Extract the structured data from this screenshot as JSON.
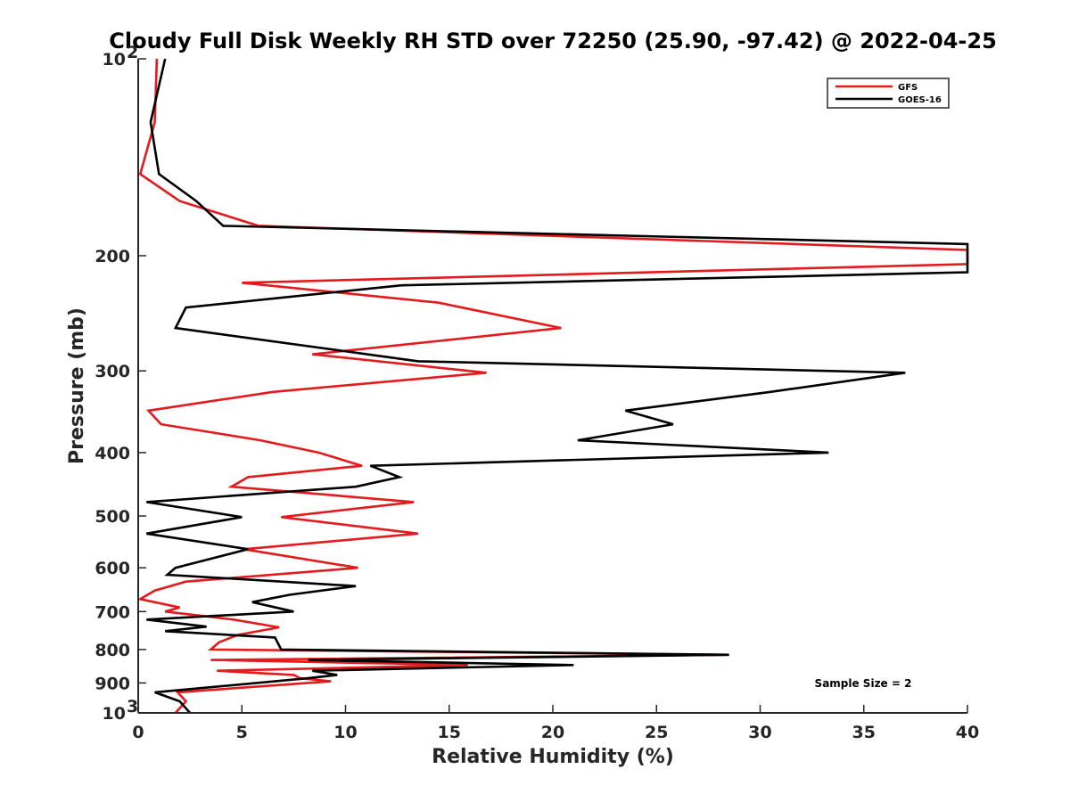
{
  "chart_data": {
    "type": "line",
    "title": "Cloudy Full Disk Weekly RH STD over 72250 (25.90, -97.42) @ 2022-04-25",
    "xlabel": "Relative Humidity (%)",
    "ylabel": "Pressure (mb)",
    "xlim": [
      0,
      40
    ],
    "ylim": [
      100,
      1000
    ],
    "y_scale": "log",
    "y_reversed": true,
    "grid": false,
    "legend_position": "top-right",
    "x_ticks": [
      "0",
      "5",
      "10",
      "15",
      "20",
      "25",
      "30",
      "35",
      "40"
    ],
    "y_ticks": [
      {
        "value": 100,
        "label": "10",
        "exp": "2"
      },
      {
        "value": 200,
        "label": "200",
        "exp": ""
      },
      {
        "value": 300,
        "label": "300",
        "exp": ""
      },
      {
        "value": 400,
        "label": "400",
        "exp": ""
      },
      {
        "value": 500,
        "label": "500",
        "exp": ""
      },
      {
        "value": 600,
        "label": "600",
        "exp": ""
      },
      {
        "value": 700,
        "label": "700",
        "exp": ""
      },
      {
        "value": 800,
        "label": "800",
        "exp": ""
      },
      {
        "value": 900,
        "label": "900",
        "exp": ""
      },
      {
        "value": 1000,
        "label": "10",
        "exp": "3"
      }
    ],
    "annotation": "Sample Size = 2",
    "series": [
      {
        "name": "GFS",
        "color": "#e41a1c",
        "points": [
          [
            0.9,
            100
          ],
          [
            0.8,
            125
          ],
          [
            0.1,
            150
          ],
          [
            2.0,
            165
          ],
          [
            5.8,
            180
          ],
          [
            40.0,
            196
          ],
          [
            40.0,
            206
          ],
          [
            5.0,
            220
          ],
          [
            14.5,
            236
          ],
          [
            20.4,
            258
          ],
          [
            8.4,
            283
          ],
          [
            16.8,
            302
          ],
          [
            6.5,
            323
          ],
          [
            0.5,
            345
          ],
          [
            1.1,
            362
          ],
          [
            5.9,
            383
          ],
          [
            8.7,
            400
          ],
          [
            10.8,
            419
          ],
          [
            5.3,
            436
          ],
          [
            4.5,
            451
          ],
          [
            13.3,
            476
          ],
          [
            6.9,
            502
          ],
          [
            13.5,
            532
          ],
          [
            5.1,
            562
          ],
          [
            10.6,
            600
          ],
          [
            2.3,
            630
          ],
          [
            0.8,
            650
          ],
          [
            0.1,
            670
          ],
          [
            2.0,
            690
          ],
          [
            1.3,
            700
          ],
          [
            4.6,
            720
          ],
          [
            6.8,
            740
          ],
          [
            4.8,
            760
          ],
          [
            3.9,
            780
          ],
          [
            3.5,
            800
          ],
          [
            28.5,
            815
          ],
          [
            3.5,
            830
          ],
          [
            15.9,
            845
          ],
          [
            3.8,
            862
          ],
          [
            7.5,
            875
          ],
          [
            7.8,
            885
          ],
          [
            9.3,
            895
          ],
          [
            1.9,
            930
          ],
          [
            2.3,
            960
          ],
          [
            1.8,
            1000
          ]
        ]
      },
      {
        "name": "GOES-16",
        "color": "#000000",
        "points": [
          [
            1.3,
            100
          ],
          [
            0.6,
            125
          ],
          [
            1.0,
            150
          ],
          [
            2.8,
            165
          ],
          [
            4.1,
            180
          ],
          [
            40.0,
            192
          ],
          [
            40.0,
            212
          ],
          [
            12.7,
            222
          ],
          [
            2.3,
            240
          ],
          [
            1.8,
            258
          ],
          [
            13.5,
            290
          ],
          [
            37.0,
            302
          ],
          [
            30.5,
            323
          ],
          [
            23.5,
            345
          ],
          [
            25.8,
            362
          ],
          [
            21.2,
            383
          ],
          [
            33.3,
            400
          ],
          [
            11.2,
            419
          ],
          [
            12.6,
            436
          ],
          [
            10.5,
            451
          ],
          [
            0.4,
            476
          ],
          [
            5.0,
            502
          ],
          [
            0.4,
            532
          ],
          [
            5.3,
            562
          ],
          [
            1.8,
            600
          ],
          [
            1.4,
            615
          ],
          [
            10.5,
            640
          ],
          [
            7.3,
            660
          ],
          [
            5.5,
            677
          ],
          [
            7.5,
            700
          ],
          [
            0.4,
            720
          ],
          [
            3.3,
            738
          ],
          [
            1.3,
            750
          ],
          [
            6.6,
            767
          ],
          [
            6.9,
            800
          ],
          [
            28.5,
            815
          ],
          [
            8.2,
            830
          ],
          [
            21.0,
            845
          ],
          [
            8.4,
            862
          ],
          [
            9.6,
            875
          ],
          [
            8.2,
            885
          ],
          [
            0.8,
            930
          ],
          [
            2.0,
            960
          ],
          [
            2.5,
            1000
          ]
        ]
      }
    ]
  }
}
